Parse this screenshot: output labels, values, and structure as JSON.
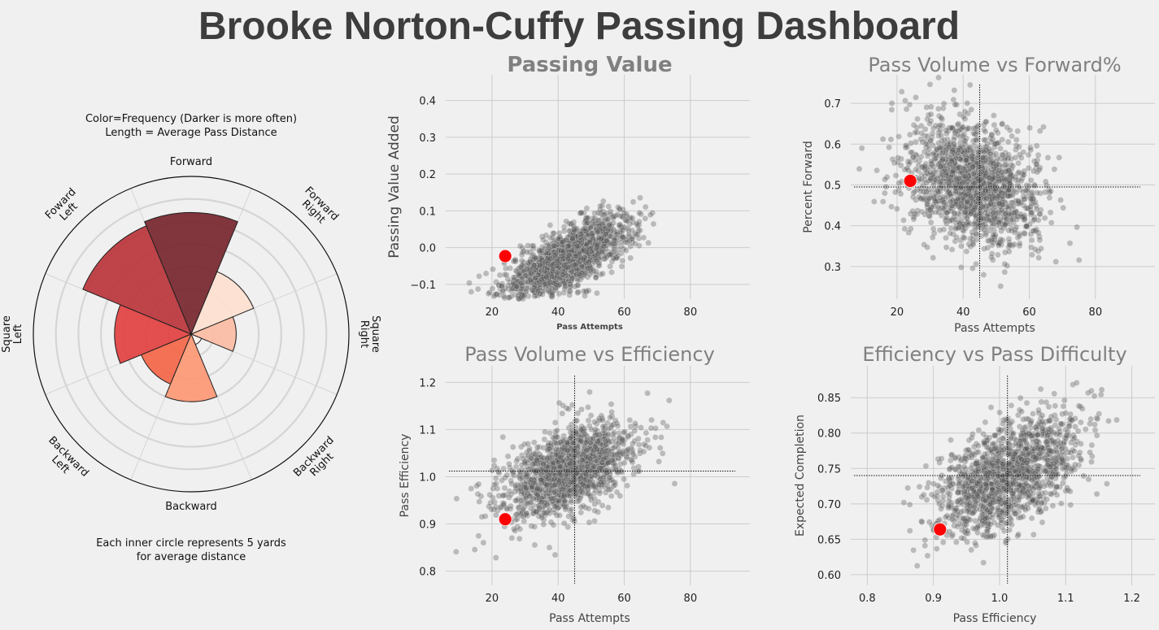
{
  "title": "Brooke Norton-Cuffy Passing Dashboard",
  "colors": {
    "background": "#f0f0f0",
    "grid": "#cbcbcb",
    "points": "#555555",
    "highlight": "#ff0000",
    "title": "#3d3d3d",
    "panel_title": "#808080"
  },
  "chart_data": [
    {
      "type": "polar-bar",
      "annotations": [
        "Color=Frequency (Darker is more often)",
        "Length = Average Pass Distance"
      ],
      "footnote": [
        "Each inner circle represents 5 yards",
        "for average distance"
      ],
      "grid": true,
      "ring_step_yards": 5,
      "rmax_yards": 35,
      "directions": [
        {
          "label": "Forward",
          "avg_distance": 27,
          "frequency": 1.0,
          "color": "#7a2a33"
        },
        {
          "label": "Forward Right",
          "avg_distance": 15,
          "frequency": 0.2,
          "color": "#fde0d2"
        },
        {
          "label": "Square Right",
          "avg_distance": 10,
          "frequency": 0.3,
          "color": "#fbbda4"
        },
        {
          "label": "Backward Right",
          "avg_distance": 2.5,
          "frequency": 0.05,
          "color": "#fff5f0"
        },
        {
          "label": "Backward",
          "avg_distance": 15,
          "frequency": 0.5,
          "color": "#fc9a78"
        },
        {
          "label": "Backward Left",
          "avg_distance": 12,
          "frequency": 0.6,
          "color": "#f4694d"
        },
        {
          "label": "Square Left",
          "avg_distance": 17,
          "frequency": 0.7,
          "color": "#e14545"
        },
        {
          "label": "Foward Left",
          "avg_distance": 26,
          "frequency": 0.85,
          "color": "#bb3a3f"
        }
      ],
      "direction_text": [
        [
          "Forward"
        ],
        [
          "Forward",
          "Right"
        ],
        [
          "Square",
          "Right"
        ],
        [
          "Backward",
          "Right"
        ],
        [
          "Backward"
        ],
        [
          "Backward",
          "Left"
        ],
        [
          "Square",
          "Left"
        ],
        [
          "Foward",
          "Left"
        ]
      ]
    },
    {
      "type": "scatter",
      "title": "Passing Value",
      "xlabel": "Pass Attempts",
      "ylabel": "Passing Value Added",
      "xlim": [
        6,
        98
      ],
      "ylim": [
        -0.14,
        0.47
      ],
      "xticks": [
        20,
        40,
        60,
        80
      ],
      "yticks": [
        -0.1,
        0.0,
        0.1,
        0.2,
        0.3,
        0.4
      ],
      "ytick_labels": [
        "−0.1",
        "0.0",
        "0.1",
        "0.2",
        "0.3",
        "0.4"
      ],
      "highlight": {
        "x": 24,
        "y": -0.023
      },
      "cloud": {
        "n": 1500,
        "x_center": 43,
        "x_spread": 10,
        "y_base": -0.03,
        "y_slope": 0.0044,
        "y_spread": 0.042
      }
    },
    {
      "type": "scatter",
      "title": "Pass Volume vs Forward%",
      "xlabel": "Pass Attempts",
      "ylabel": "Percent Forward",
      "xlim": [
        6,
        98
      ],
      "ylim": [
        0.22,
        0.77
      ],
      "xticks": [
        20,
        40,
        60,
        80
      ],
      "yticks": [
        0.3,
        0.4,
        0.5,
        0.6,
        0.7
      ],
      "ytick_labels": [
        "0.3",
        "0.4",
        "0.5",
        "0.6",
        "0.7"
      ],
      "highlight": {
        "x": 24,
        "y": 0.51
      },
      "mean_lines": {
        "x": 45,
        "y": 0.495
      },
      "cloud": {
        "n": 1500,
        "x_center": 43,
        "x_spread": 10,
        "y_base": 0.5,
        "y_slope": -0.0025,
        "y_spread": 0.075
      }
    },
    {
      "type": "scatter",
      "title": "Pass Volume vs Efficiency",
      "xlabel": "Pass Attempts",
      "ylabel": "Pass Efficiency",
      "xlim": [
        6,
        98
      ],
      "ylim": [
        0.77,
        1.235
      ],
      "xticks": [
        20,
        40,
        60,
        80
      ],
      "yticks": [
        0.8,
        0.9,
        1.0,
        1.1,
        1.2
      ],
      "ytick_labels": [
        "0.8",
        "0.9",
        "1.0",
        "1.1",
        "1.2"
      ],
      "highlight": {
        "x": 24,
        "y": 0.91
      },
      "mean_lines": {
        "x": 45,
        "y": 1.012
      },
      "cloud": {
        "n": 1500,
        "x_center": 43,
        "x_spread": 10,
        "y_base": 1.012,
        "y_slope": 0.0025,
        "y_spread": 0.045
      }
    },
    {
      "type": "scatter",
      "title": "Efficiency vs Pass Difficulty",
      "xlabel": "Pass Efficiency",
      "ylabel": "Expected Completion",
      "xlim": [
        0.775,
        1.235
      ],
      "ylim": [
        0.585,
        0.895
      ],
      "xticks": [
        0.8,
        0.9,
        1.0,
        1.1,
        1.2
      ],
      "yticks": [
        0.6,
        0.65,
        0.7,
        0.75,
        0.8,
        0.85
      ],
      "xtick_labels": [
        "0.8",
        "0.9",
        "1.0",
        "1.1",
        "1.2"
      ],
      "ytick_labels": [
        "0.60",
        "0.65",
        "0.70",
        "0.75",
        "0.80",
        "0.85"
      ],
      "highlight": {
        "x": 0.91,
        "y": 0.664
      },
      "mean_lines": {
        "x": 1.012,
        "y": 0.74
      },
      "cloud": {
        "n": 1500,
        "x_center": 1.012,
        "x_spread": 0.055,
        "y_base": 0.74,
        "y_slope": 0.42,
        "y_spread": 0.035
      }
    }
  ]
}
